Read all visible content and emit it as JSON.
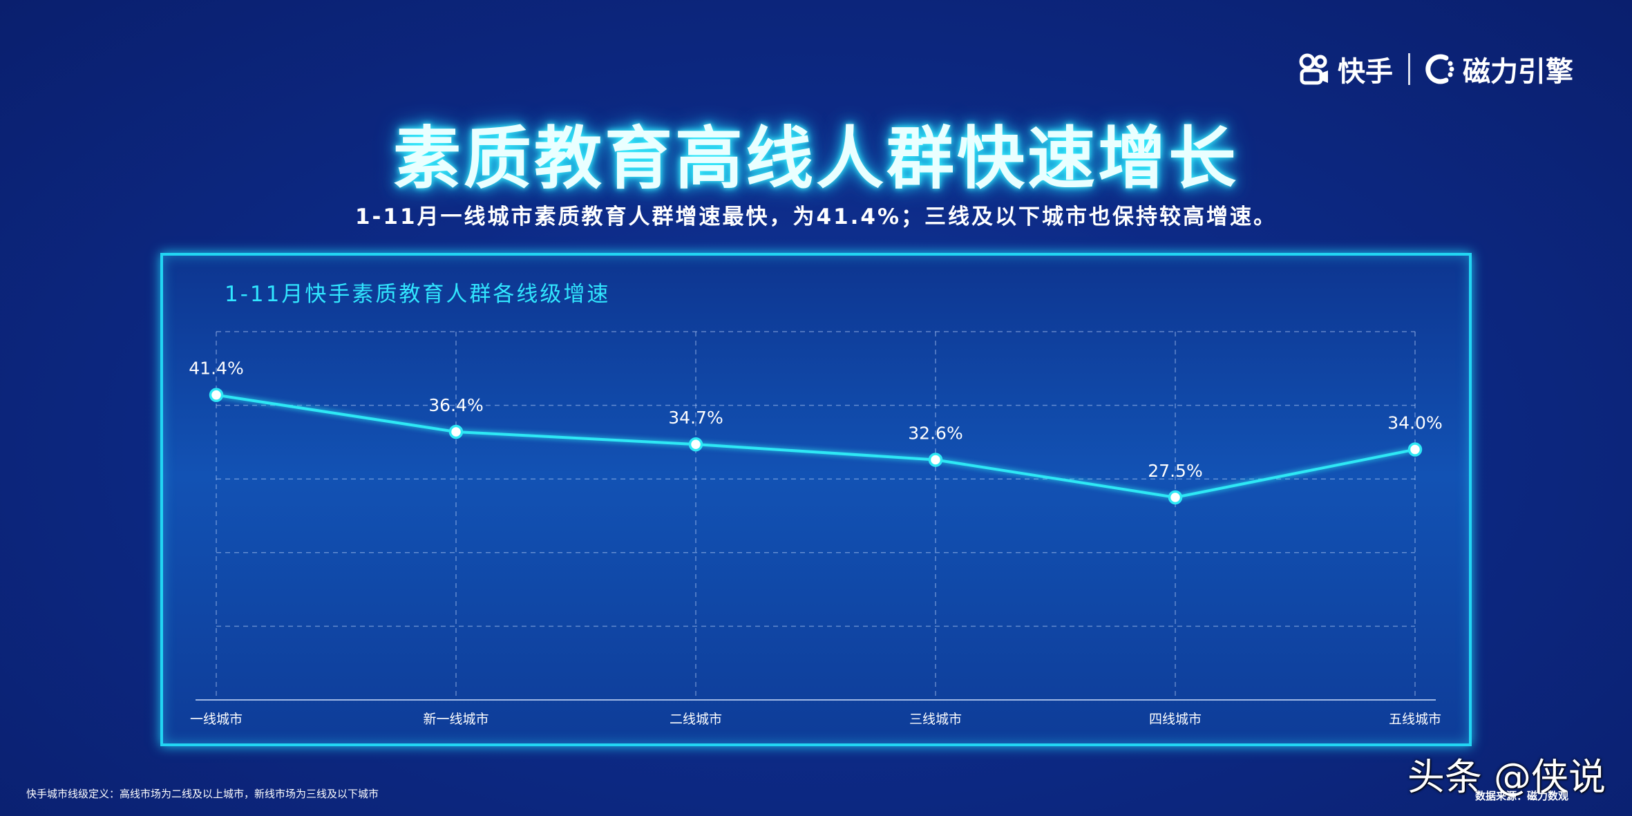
{
  "brand": {
    "kuaishou": "快手",
    "cili": "磁力引擎"
  },
  "title": "素质教育高线人群快速增长",
  "subtitle": "1-11月一线城市素质教育人群增速最快，为41.4%；三线及以下城市也保持较高增速。",
  "footnote": "快手城市线级定义：高线市场为二线及以上城市，新线市场为三线及以下城市",
  "watermark": "头条 @侠说",
  "source": "数据来源：磁力数观",
  "chart_data": {
    "type": "line",
    "title": "1-11月快手素质教育人群各线级增速",
    "categories": [
      "一线城市",
      "新一线城市",
      "二线城市",
      "三线城市",
      "四线城市",
      "五线城市"
    ],
    "values": [
      41.4,
      36.4,
      34.7,
      32.6,
      27.5,
      34.0
    ],
    "labels": [
      "41.4%",
      "36.4%",
      "34.7%",
      "32.6%",
      "27.5%",
      "34.0%"
    ],
    "ylim": [
      0,
      50
    ],
    "grid": true,
    "line_color": "#2ee8f5"
  }
}
